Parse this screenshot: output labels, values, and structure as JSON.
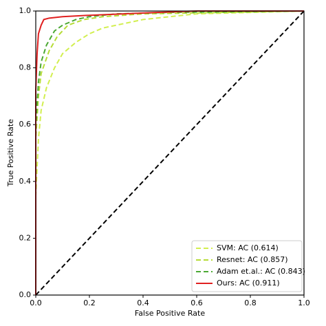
{
  "chart_data": {
    "type": "line",
    "xlabel": "False Positive Rate",
    "ylabel": "True Positive Rate",
    "xlim": [
      0,
      1
    ],
    "ylim": [
      0,
      1
    ],
    "xticks": [
      {
        "value": 0,
        "label": "0.0"
      },
      0.2,
      0.4,
      0.6,
      0.8,
      {
        "value": 1,
        "label": "1.0"
      }
    ],
    "yticks": [
      {
        "value": 0,
        "label": "0.0"
      },
      0.2,
      0.4,
      0.6,
      0.8,
      {
        "value": 1,
        "label": "1.0"
      }
    ],
    "legend": "lower right",
    "diagonal": {
      "x": [
        0,
        1
      ],
      "values": [
        0,
        1
      ],
      "color": "#000000"
    },
    "series": [
      {
        "name": "SVM: AC (0.614)",
        "color": "#d2ef4f",
        "dashed": true,
        "x": [
          0,
          0,
          0.01,
          0.02,
          0.04,
          0.07,
          0.1,
          0.15,
          0.2,
          0.25,
          0.3,
          0.4,
          0.5,
          0.6,
          0.8,
          1
        ],
        "values": [
          0,
          0.35,
          0.55,
          0.65,
          0.73,
          0.8,
          0.85,
          0.89,
          0.92,
          0.94,
          0.95,
          0.97,
          0.98,
          0.99,
          0.995,
          1
        ]
      },
      {
        "name": "Resnet: AC (0.857)",
        "color": "#b5dc36",
        "dashed": true,
        "x": [
          0,
          0,
          0.01,
          0.02,
          0.05,
          0.08,
          0.12,
          0.18,
          0.25,
          0.4,
          1
        ],
        "values": [
          0,
          0.55,
          0.7,
          0.78,
          0.86,
          0.91,
          0.95,
          0.97,
          0.98,
          0.99,
          1
        ]
      },
      {
        "name": "Adam et.al.: AC (0.843)",
        "color": "#4aa832",
        "dashed": true,
        "x": [
          0,
          0,
          0.01,
          0.02,
          0.04,
          0.07,
          0.1,
          0.15,
          0.2,
          0.3,
          0.5,
          1
        ],
        "values": [
          0,
          0.6,
          0.75,
          0.82,
          0.88,
          0.93,
          0.95,
          0.97,
          0.98,
          0.99,
          0.995,
          1
        ]
      },
      {
        "name": "Ours: AC (0.911)",
        "color": "#e02020",
        "dashed": false,
        "x": [
          0,
          0,
          0.005,
          0.01,
          0.02,
          0.03,
          0.05,
          0.1,
          0.2,
          0.45,
          0.6,
          1
        ],
        "values": [
          0,
          0.72,
          0.85,
          0.92,
          0.95,
          0.97,
          0.975,
          0.98,
          0.985,
          0.995,
          1,
          1
        ]
      }
    ]
  }
}
